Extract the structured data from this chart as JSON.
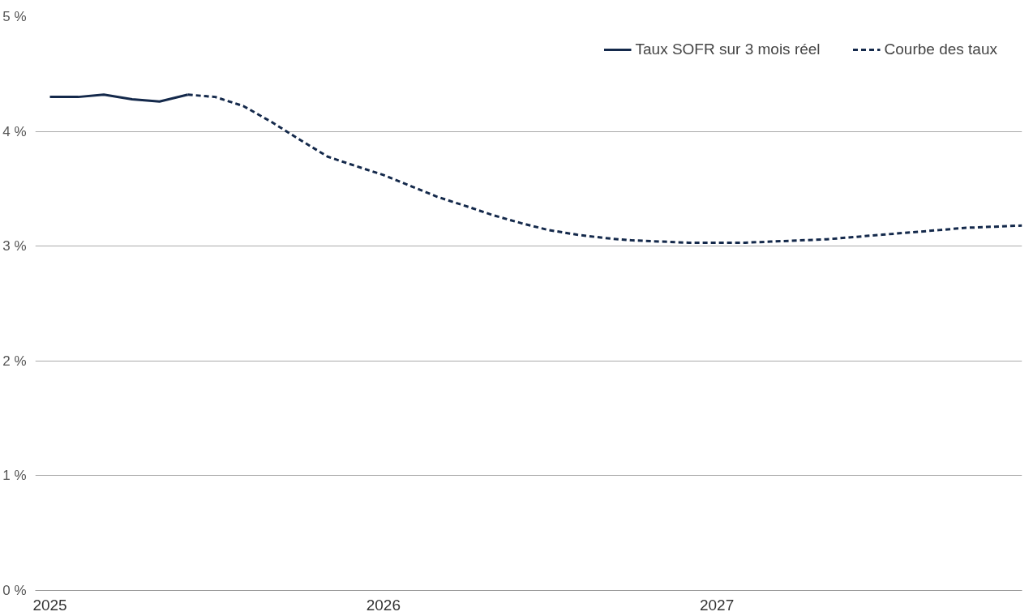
{
  "chart_data": {
    "type": "line",
    "x": [
      "2025-01",
      "2025-02",
      "2025-03",
      "2025-04",
      "2025-05",
      "2025-06",
      "2025-07",
      "2025-08",
      "2025-09",
      "2025-10",
      "2025-11",
      "2025-12",
      "2026-01",
      "2026-02",
      "2026-03",
      "2026-04",
      "2026-05",
      "2026-06",
      "2026-07",
      "2026-08",
      "2026-09",
      "2026-10",
      "2026-11",
      "2026-12",
      "2027-01",
      "2027-02",
      "2027-03",
      "2027-04",
      "2027-05",
      "2027-06",
      "2027-07",
      "2027-08",
      "2027-09",
      "2027-10",
      "2027-11",
      "2027-12"
    ],
    "series": [
      {
        "name": "Taux SOFR sur 3 mois réel",
        "color": "#14294b",
        "line_style": "solid",
        "values": [
          4.3,
          4.3,
          4.32,
          4.28,
          4.26,
          4.32,
          null,
          null,
          null,
          null,
          null,
          null,
          null,
          null,
          null,
          null,
          null,
          null,
          null,
          null,
          null,
          null,
          null,
          null,
          null,
          null,
          null,
          null,
          null,
          null,
          null,
          null,
          null,
          null,
          null,
          null
        ]
      },
      {
        "name": "Courbe des taux",
        "color": "#14294b",
        "line_style": "dashed",
        "values": [
          null,
          null,
          null,
          null,
          null,
          4.32,
          4.3,
          4.22,
          4.08,
          3.93,
          3.78,
          3.7,
          3.62,
          3.52,
          3.43,
          3.35,
          3.27,
          3.2,
          3.14,
          3.1,
          3.07,
          3.05,
          3.04,
          3.03,
          3.03,
          3.03,
          3.04,
          3.05,
          3.06,
          3.08,
          3.1,
          3.12,
          3.14,
          3.16,
          3.17,
          3.18
        ]
      }
    ],
    "xlim": [
      "2024-12-16",
      "2027-12-01"
    ],
    "xticks": [
      "2025",
      "2026",
      "2027"
    ],
    "ylim": [
      0,
      5
    ],
    "yticks": [
      {
        "value": 0,
        "label": "0 %"
      },
      {
        "value": 1,
        "label": "1 %"
      },
      {
        "value": 2,
        "label": "2 %"
      },
      {
        "value": 3,
        "label": "3 %"
      },
      {
        "value": 4,
        "label": "4 %"
      },
      {
        "value": 5,
        "label": "5 %"
      }
    ],
    "grid": "y",
    "legend": "top right",
    "marker": "none"
  }
}
